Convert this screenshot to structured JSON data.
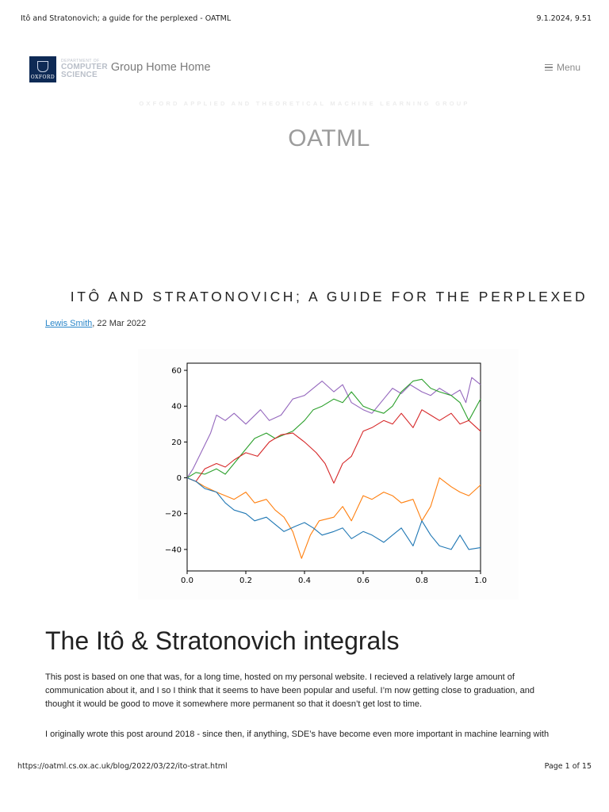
{
  "print_header": {
    "title": "Itô and Stratonovich; a guide for the perplexed - OATML",
    "datetime": "9.1.2024, 9.51"
  },
  "print_footer": {
    "url": "https://oatml.cs.ox.ac.uk/blog/2022/03/22/ito-strat.html",
    "page": "Page 1 of 15"
  },
  "nav": {
    "logo": {
      "oxford": "OXFORD",
      "dept_small": "DEPARTMENT OF",
      "dept_line1": "COMPUTER",
      "dept_line2": "SCIENCE"
    },
    "brand_title": "Group Home Home",
    "menu_label": "Menu",
    "menu_icon": "hamburger-icon"
  },
  "tagline": "OXFORD APPLIED AND THEORETICAL MACHINE LEARNING GROUP",
  "site_title": "OATML",
  "post": {
    "title": "ITÔ AND STRATONOVICH; A GUIDE FOR THE PERPLEXED",
    "author": "Lewis Smith",
    "date": ", 22 Mar 2022",
    "section_title": "The Itô & Stratonovich integrals",
    "paragraph1_lines": [
      "This post is based on one that was, for a long time, hosted on my personal website. I recieved a relatively large amount of",
      "communication about it, and I so I think that it seems to have been popular and useful. I’m now getting close to graduation, and",
      "thought it would be good to move it somewhere more permanent so that it doesn’t get lost to time."
    ],
    "paragraph2_lines": [
      "I originally wrote this post around 2018 - since then, if anything, SDE’s have become even more important in machine learning with"
    ]
  },
  "chart_data": {
    "type": "line",
    "xlim": [
      0.0,
      1.0
    ],
    "ylim": [
      -52,
      64
    ],
    "xticks": [
      0.0,
      0.2,
      0.4,
      0.6,
      0.8,
      1.0
    ],
    "yticks": [
      60,
      40,
      20,
      0,
      -20,
      -40
    ],
    "xtick_labels": [
      "0.0",
      "0.2",
      "0.4",
      "0.6",
      "0.8",
      "1.0"
    ],
    "ytick_labels": [
      "60",
      "40",
      "20",
      "0",
      "−20",
      "−40"
    ],
    "grid": false,
    "series": [
      {
        "color": "#9467bd",
        "x": [
          0,
          0.02,
          0.05,
          0.08,
          0.1,
          0.13,
          0.16,
          0.2,
          0.25,
          0.28,
          0.32,
          0.36,
          0.4,
          0.43,
          0.46,
          0.5,
          0.53,
          0.56,
          0.6,
          0.63,
          0.67,
          0.7,
          0.73,
          0.76,
          0.8,
          0.83,
          0.86,
          0.9,
          0.93,
          0.95,
          0.97,
          1.0
        ],
        "y": [
          0,
          5,
          15,
          25,
          35,
          32,
          36,
          30,
          38,
          32,
          35,
          44,
          46,
          50,
          54,
          48,
          52,
          42,
          38,
          36,
          44,
          50,
          47,
          52,
          48,
          46,
          50,
          46,
          49,
          42,
          56,
          52
        ]
      },
      {
        "color": "#2ca02c",
        "x": [
          0,
          0.03,
          0.06,
          0.1,
          0.13,
          0.16,
          0.2,
          0.23,
          0.27,
          0.3,
          0.33,
          0.36,
          0.4,
          0.43,
          0.46,
          0.5,
          0.53,
          0.56,
          0.6,
          0.63,
          0.67,
          0.7,
          0.73,
          0.77,
          0.8,
          0.83,
          0.86,
          0.9,
          0.93,
          0.96,
          1.0
        ],
        "y": [
          0,
          3,
          2,
          5,
          2,
          8,
          16,
          22,
          25,
          22,
          24,
          26,
          32,
          38,
          40,
          44,
          42,
          48,
          40,
          38,
          36,
          40,
          48,
          54,
          55,
          50,
          48,
          46,
          42,
          32,
          44
        ]
      },
      {
        "color": "#d62728",
        "x": [
          0,
          0.03,
          0.06,
          0.1,
          0.13,
          0.16,
          0.2,
          0.24,
          0.28,
          0.32,
          0.36,
          0.4,
          0.44,
          0.47,
          0.5,
          0.53,
          0.56,
          0.6,
          0.63,
          0.67,
          0.7,
          0.73,
          0.77,
          0.8,
          0.83,
          0.86,
          0.9,
          0.93,
          0.96,
          1.0
        ],
        "y": [
          0,
          -2,
          5,
          8,
          6,
          10,
          14,
          12,
          20,
          24,
          25,
          20,
          14,
          8,
          -3,
          8,
          12,
          26,
          28,
          32,
          30,
          36,
          28,
          38,
          35,
          32,
          36,
          30,
          32,
          26
        ]
      },
      {
        "color": "#ff7f0e",
        "x": [
          0,
          0.03,
          0.06,
          0.1,
          0.13,
          0.16,
          0.2,
          0.23,
          0.27,
          0.3,
          0.33,
          0.36,
          0.39,
          0.42,
          0.45,
          0.5,
          0.53,
          0.56,
          0.6,
          0.63,
          0.67,
          0.7,
          0.73,
          0.77,
          0.8,
          0.83,
          0.86,
          0.9,
          0.93,
          0.96,
          1.0
        ],
        "y": [
          0,
          -2,
          -5,
          -8,
          -10,
          -12,
          -8,
          -14,
          -12,
          -18,
          -22,
          -30,
          -45,
          -32,
          -24,
          -22,
          -16,
          -24,
          -10,
          -12,
          -8,
          -10,
          -14,
          -12,
          -24,
          -16,
          0,
          -5,
          -8,
          -10,
          -4
        ]
      },
      {
        "color": "#1f77b4",
        "x": [
          0,
          0.03,
          0.06,
          0.1,
          0.13,
          0.16,
          0.2,
          0.23,
          0.27,
          0.3,
          0.33,
          0.37,
          0.4,
          0.43,
          0.46,
          0.5,
          0.53,
          0.56,
          0.6,
          0.63,
          0.67,
          0.7,
          0.73,
          0.77,
          0.8,
          0.83,
          0.86,
          0.9,
          0.93,
          0.96,
          1.0
        ],
        "y": [
          0,
          -2,
          -6,
          -8,
          -14,
          -18,
          -20,
          -24,
          -22,
          -26,
          -30,
          -27,
          -25,
          -28,
          -32,
          -30,
          -28,
          -34,
          -30,
          -32,
          -36,
          -32,
          -28,
          -38,
          -24,
          -32,
          -38,
          -40,
          -32,
          -40,
          -39
        ]
      }
    ]
  }
}
